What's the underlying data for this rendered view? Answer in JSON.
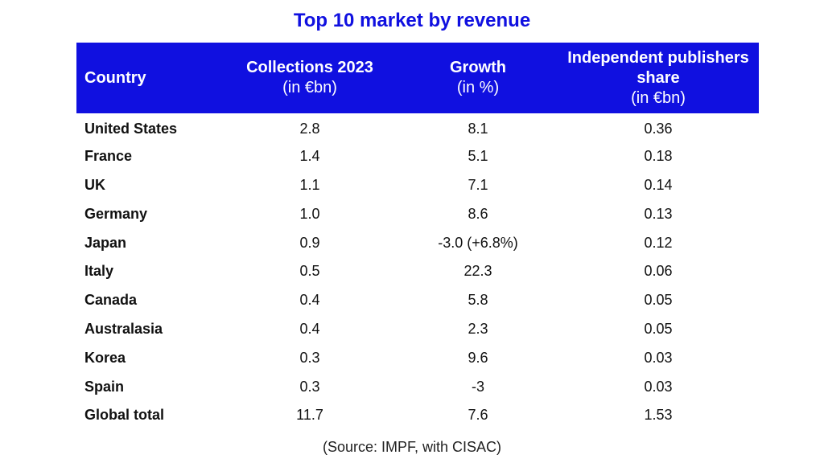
{
  "title": "Top 10 market by revenue",
  "source": "(Source: IMPF, with CISAC)",
  "accent_color": "#1010e0",
  "chart_data": {
    "type": "table",
    "title": "Top 10 market by revenue",
    "columns": [
      {
        "label": "Country",
        "unit": ""
      },
      {
        "label": "Collections 2023",
        "unit": "(in €bn)"
      },
      {
        "label": "Growth",
        "unit": "(in %)"
      },
      {
        "label": "Independent publishers share",
        "unit": "(in €bn)"
      }
    ],
    "rows": [
      {
        "country": "United States",
        "collections": "2.8",
        "growth": "8.1",
        "share": "0.36"
      },
      {
        "country": "France",
        "collections": "1.4",
        "growth": "5.1",
        "share": "0.18"
      },
      {
        "country": "UK",
        "collections": "1.1",
        "growth": "7.1",
        "share": "0.14"
      },
      {
        "country": "Germany",
        "collections": "1.0",
        "growth": "8.6",
        "share": "0.13"
      },
      {
        "country": "Japan",
        "collections": "0.9",
        "growth": "-3.0 (+6.8%)",
        "share": "0.12"
      },
      {
        "country": "Italy",
        "collections": "0.5",
        "growth": "22.3",
        "share": "0.06"
      },
      {
        "country": "Canada",
        "collections": "0.4",
        "growth": "5.8",
        "share": "0.05"
      },
      {
        "country": "Australasia",
        "collections": "0.4",
        "growth": "2.3",
        "share": "0.05"
      },
      {
        "country": "Korea",
        "collections": "0.3",
        "growth": "9.6",
        "share": "0.03"
      },
      {
        "country": "Spain",
        "collections": "0.3",
        "growth": "-3",
        "share": "0.03"
      },
      {
        "country": "Global total",
        "collections": "11.7",
        "growth": "7.6",
        "share": "1.53"
      }
    ]
  }
}
